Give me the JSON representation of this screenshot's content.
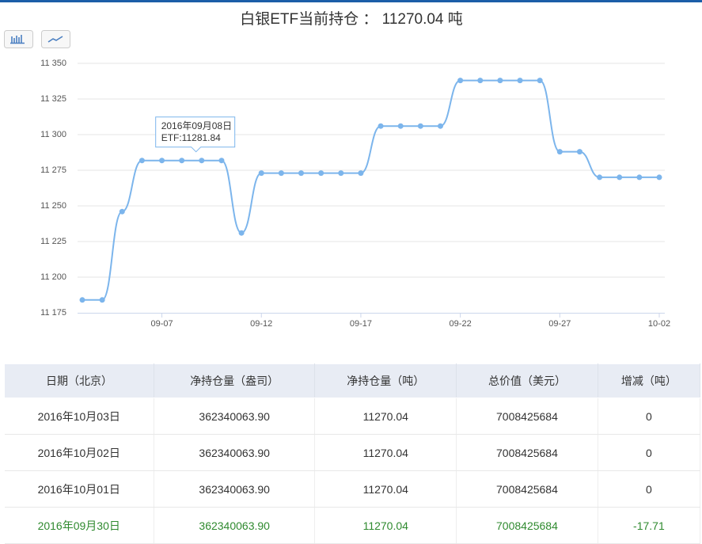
{
  "chart_data": {
    "type": "line",
    "title": "白银ETF当前持仓 ： 11270.04 吨",
    "x": [
      "09-03",
      "09-04",
      "09-05",
      "09-06",
      "09-07",
      "09-08",
      "09-09",
      "09-10",
      "09-11",
      "09-12",
      "09-13",
      "09-14",
      "09-15",
      "09-16",
      "09-17",
      "09-18",
      "09-19",
      "09-20",
      "09-21",
      "09-22",
      "09-23",
      "09-24",
      "09-25",
      "09-26",
      "09-27",
      "09-28",
      "09-29",
      "09-30",
      "10-01",
      "10-02"
    ],
    "xticks": [
      "09-07",
      "09-12",
      "09-17",
      "09-22",
      "09-27",
      "10-02"
    ],
    "series": [
      {
        "name": "ETF",
        "color": "#7cb5ec",
        "values": [
          11184,
          11184,
          11246,
          11281.84,
          11281.84,
          11281.84,
          11281.84,
          11281.84,
          11231,
          11273,
          11273,
          11273,
          11273,
          11273,
          11273,
          11306,
          11306,
          11306,
          11306,
          11338,
          11338,
          11338,
          11338,
          11338,
          11288,
          11288,
          11270.04,
          11270.04,
          11270.04,
          11270.04
        ]
      }
    ],
    "ylim": [
      11175,
      11350
    ],
    "yticks": [
      {
        "value": 11175,
        "label": "11 175"
      },
      {
        "value": 11200,
        "label": "11 200"
      },
      {
        "value": 11225,
        "label": "11 225"
      },
      {
        "value": 11250,
        "label": "11 250"
      },
      {
        "value": 11275,
        "label": "11 275"
      },
      {
        "value": 11300,
        "label": "11 300"
      },
      {
        "value": 11325,
        "label": "11 325"
      },
      {
        "value": 11350,
        "label": "11 350"
      }
    ],
    "grid": true,
    "tooltip": {
      "index": 5,
      "date": "2016年09月08日",
      "text": "ETF:11281.84"
    }
  },
  "table": {
    "header": [
      "日期（北京）",
      "净持仓量（盎司）",
      "净持仓量（吨）",
      "总价值（美元）",
      "增减（吨）"
    ],
    "rows": [
      [
        "2016年10月03日",
        "362340063.90",
        "11270.04",
        "7008425684",
        "0"
      ],
      [
        "2016年10月02日",
        "362340063.90",
        "11270.04",
        "7008425684",
        "0"
      ],
      [
        "2016年10月01日",
        "362340063.90",
        "11270.04",
        "7008425684",
        "0"
      ],
      [
        "2016年09月30日",
        "362340063.90",
        "11270.04",
        "7008425684",
        "-17.71"
      ]
    ]
  }
}
